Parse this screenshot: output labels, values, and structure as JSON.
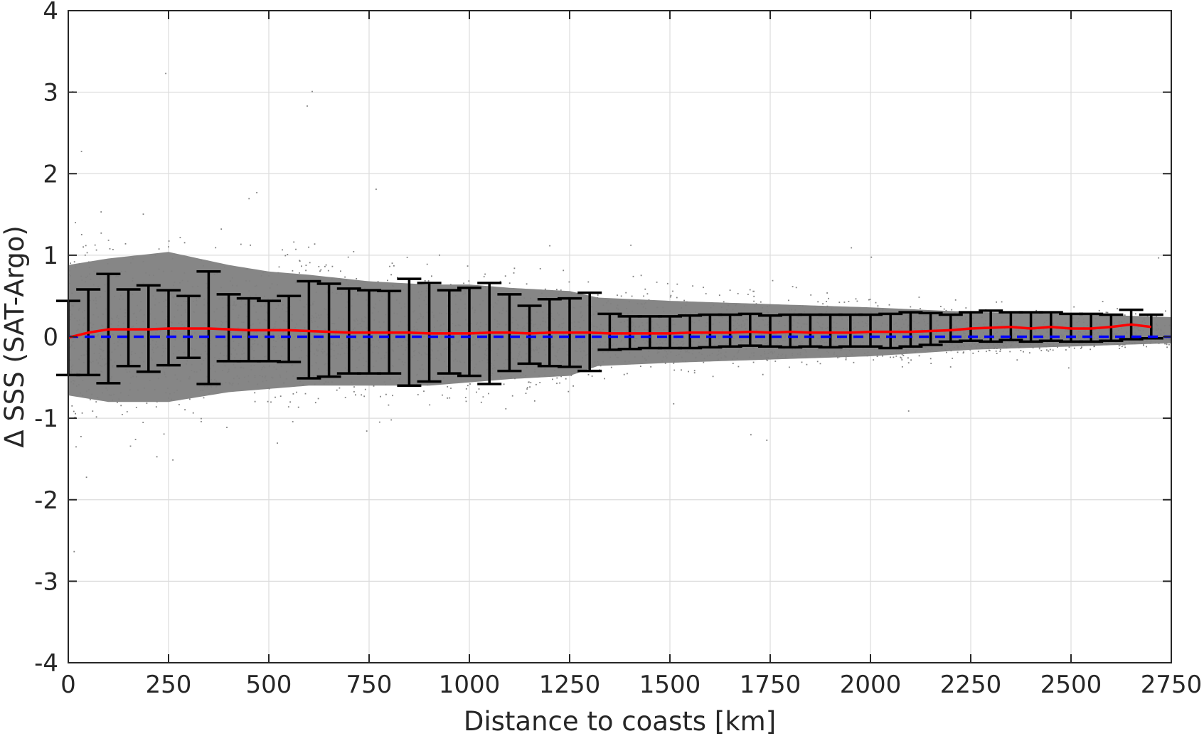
{
  "chart_data": {
    "type": "scatter",
    "title": "",
    "xlabel": "Distance to coasts [km]",
    "ylabel": "Δ SSS (SAT-Argo)",
    "xlim": [
      0,
      2750
    ],
    "ylim": [
      -4,
      4
    ],
    "grid": true,
    "xticks": [
      0,
      250,
      500,
      750,
      1000,
      1250,
      1500,
      1750,
      2000,
      2250,
      2500,
      2750
    ],
    "xtick_labels": [
      "0",
      "250",
      "500",
      "750",
      "1000",
      "1250",
      "1500",
      "1750",
      "2000",
      "2250",
      "2500",
      "2750"
    ],
    "yticks": [
      4,
      3,
      2,
      1,
      0,
      -1,
      -2,
      -3,
      -4
    ],
    "ytick_labels": [
      "4",
      "3",
      "2",
      "1",
      "0",
      "-1",
      "-2",
      "-3",
      "-4"
    ],
    "colors": {
      "scatter": "#808080",
      "mean_line": "#ff0000",
      "zero_line": "#0000ff",
      "error_bars": "#000000",
      "grid": "#dcdcdc",
      "axes": "#262626"
    },
    "scatter_envelope": {
      "description_x": [
        0,
        100,
        250,
        400,
        500,
        600,
        750,
        900,
        1000,
        1100,
        1250,
        1320,
        1500,
        1750,
        2000,
        2250,
        2500,
        2750
      ],
      "upper": [
        1.1,
        1.2,
        1.3,
        1.1,
        1.0,
        0.95,
        0.85,
        0.8,
        0.8,
        0.75,
        0.7,
        0.6,
        0.55,
        0.5,
        0.45,
        0.38,
        0.35,
        0.3
      ],
      "lower": [
        -0.9,
        -1.0,
        -1.0,
        -0.85,
        -0.8,
        -0.75,
        -0.75,
        -0.75,
        -0.7,
        -0.65,
        -0.6,
        -0.45,
        -0.4,
        -0.35,
        -0.3,
        -0.2,
        -0.15,
        -0.1
      ]
    },
    "bin_means": {
      "x": [
        0,
        50,
        100,
        150,
        200,
        250,
        300,
        350,
        400,
        450,
        500,
        550,
        600,
        650,
        700,
        750,
        800,
        850,
        900,
        950,
        1000,
        1050,
        1100,
        1150,
        1200,
        1250,
        1300,
        1350,
        1400,
        1450,
        1500,
        1550,
        1600,
        1650,
        1700,
        1750,
        1800,
        1850,
        1900,
        1950,
        2000,
        2050,
        2100,
        2150,
        2200,
        2250,
        2300,
        2350,
        2400,
        2450,
        2500,
        2550,
        2600,
        2650,
        2700
      ],
      "y": [
        -0.01,
        0.05,
        0.09,
        0.09,
        0.09,
        0.1,
        0.1,
        0.1,
        0.09,
        0.08,
        0.08,
        0.08,
        0.07,
        0.06,
        0.05,
        0.05,
        0.05,
        0.05,
        0.04,
        0.04,
        0.04,
        0.05,
        0.05,
        0.04,
        0.05,
        0.05,
        0.05,
        0.04,
        0.04,
        0.04,
        0.04,
        0.05,
        0.05,
        0.05,
        0.06,
        0.05,
        0.06,
        0.05,
        0.05,
        0.05,
        0.06,
        0.06,
        0.06,
        0.07,
        0.08,
        0.1,
        0.11,
        0.12,
        0.1,
        0.12,
        0.1,
        0.1,
        0.12,
        0.15,
        0.12
      ]
    },
    "error_bars": {
      "x": [
        0,
        50,
        100,
        150,
        200,
        250,
        300,
        350,
        400,
        450,
        500,
        550,
        600,
        650,
        700,
        750,
        800,
        850,
        900,
        950,
        1000,
        1050,
        1100,
        1150,
        1200,
        1250,
        1300,
        1350,
        1400,
        1450,
        1500,
        1550,
        1600,
        1650,
        1700,
        1750,
        1800,
        1850,
        1900,
        1950,
        2000,
        2050,
        2100,
        2150,
        2200,
        2250,
        2300,
        2350,
        2400,
        2450,
        2500,
        2550,
        2600,
        2650,
        2700
      ],
      "upper": [
        0.44,
        0.58,
        0.77,
        0.58,
        0.63,
        0.57,
        0.5,
        0.8,
        0.52,
        0.47,
        0.44,
        0.5,
        0.68,
        0.65,
        0.59,
        0.57,
        0.56,
        0.71,
        0.66,
        0.57,
        0.6,
        0.66,
        0.52,
        0.38,
        0.46,
        0.47,
        0.54,
        0.28,
        0.25,
        0.25,
        0.25,
        0.26,
        0.27,
        0.27,
        0.28,
        0.26,
        0.27,
        0.27,
        0.27,
        0.27,
        0.27,
        0.28,
        0.3,
        0.29,
        0.27,
        0.3,
        0.32,
        0.3,
        0.3,
        0.3,
        0.28,
        0.28,
        0.27,
        0.33,
        0.27
      ],
      "lower": [
        -0.47,
        -0.47,
        -0.57,
        -0.36,
        -0.43,
        -0.35,
        -0.26,
        -0.58,
        -0.3,
        -0.3,
        -0.3,
        -0.31,
        -0.51,
        -0.49,
        -0.45,
        -0.45,
        -0.45,
        -0.6,
        -0.55,
        -0.45,
        -0.48,
        -0.58,
        -0.42,
        -0.33,
        -0.36,
        -0.37,
        -0.42,
        -0.16,
        -0.15,
        -0.14,
        -0.14,
        -0.14,
        -0.13,
        -0.12,
        -0.11,
        -0.12,
        -0.13,
        -0.12,
        -0.13,
        -0.12,
        -0.12,
        -0.14,
        -0.12,
        -0.1,
        -0.06,
        -0.05,
        -0.06,
        -0.04,
        -0.06,
        -0.05,
        -0.06,
        -0.06,
        -0.05,
        -0.03,
        -0.02
      ]
    },
    "zero_line": {
      "y": 0,
      "style": "dashed"
    }
  }
}
